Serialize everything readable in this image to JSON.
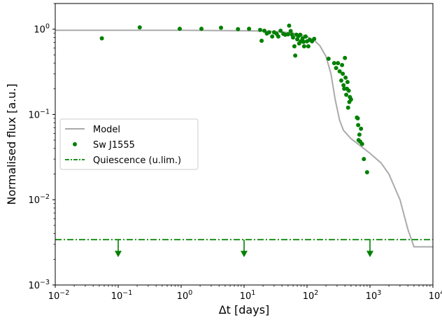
{
  "chart_data": {
    "type": "line",
    "xlabel": "Δt [days]",
    "ylabel": "Normalised flux [a.u.]",
    "x_scale": "log",
    "y_scale": "log",
    "xlim": [
      0.01,
      10000
    ],
    "ylim": [
      0.001,
      2
    ],
    "x_ticks": [
      {
        "value": 0.01,
        "base": "10",
        "exp": "−2"
      },
      {
        "value": 0.1,
        "base": "10",
        "exp": "−1"
      },
      {
        "value": 1,
        "base": "10",
        "exp": "0"
      },
      {
        "value": 10,
        "base": "10",
        "exp": "1"
      },
      {
        "value": 100,
        "base": "10",
        "exp": "2"
      },
      {
        "value": 1000,
        "base": "10",
        "exp": "3"
      },
      {
        "value": 10000,
        "base": "10",
        "exp": "4"
      }
    ],
    "y_ticks": [
      {
        "value": 1,
        "base": "10",
        "exp": "0"
      },
      {
        "value": 0.1,
        "base": "10",
        "exp": "−1"
      },
      {
        "value": 0.01,
        "base": "10",
        "exp": "−2"
      },
      {
        "value": 0.001,
        "base": "10",
        "exp": "−3"
      }
    ],
    "grid": false,
    "legend": {
      "placement": "center-left",
      "entries": [
        {
          "label": "Model",
          "marker": "line",
          "color": "#aaaaaa"
        },
        {
          "label": "Sw J1555",
          "marker": "dot",
          "color": "#008000"
        },
        {
          "label": "Quiescence (u.lim.)",
          "marker": "dashdot",
          "color": "#008000"
        }
      ]
    },
    "series": [
      {
        "name": "Model",
        "style": "line",
        "color": "#aaaaaa",
        "x": [
          0.01,
          1,
          10,
          20,
          40,
          60,
          80,
          100,
          130,
          160,
          200,
          240,
          280,
          330,
          380,
          500,
          700,
          1000,
          1500,
          2000,
          3000,
          4000,
          5000,
          10000
        ],
        "y": [
          0.97,
          0.97,
          0.96,
          0.95,
          0.93,
          0.9,
          0.86,
          0.82,
          0.74,
          0.64,
          0.48,
          0.3,
          0.15,
          0.085,
          0.065,
          0.052,
          0.043,
          0.035,
          0.027,
          0.02,
          0.01,
          0.0045,
          0.0028,
          0.0028
        ]
      },
      {
        "name": "Sw J1555",
        "style": "scatter",
        "color": "#008000",
        "x": [
          0.055,
          0.22,
          0.95,
          2.1,
          4.3,
          8,
          12,
          18,
          19,
          21,
          23,
          25,
          28,
          30,
          33,
          35,
          38,
          42,
          45,
          50,
          52,
          55,
          58,
          60,
          63,
          65,
          68,
          70,
          73,
          75,
          78,
          80,
          85,
          88,
          90,
          95,
          100,
          105,
          110,
          120,
          130,
          220,
          270,
          290,
          310,
          330,
          350,
          360,
          370,
          380,
          390,
          400,
          410,
          420,
          430,
          440,
          450,
          460,
          470,
          480,
          500,
          620,
          640,
          650,
          660,
          680,
          700,
          720,
          750,
          800,
          900
        ],
        "y": [
          0.78,
          1.05,
          1.01,
          1.01,
          1.04,
          1.0,
          1.01,
          0.98,
          0.73,
          0.96,
          0.89,
          0.92,
          0.82,
          0.92,
          0.88,
          0.82,
          0.96,
          0.88,
          0.86,
          0.87,
          1.1,
          0.95,
          0.86,
          0.8,
          0.63,
          0.49,
          0.86,
          0.76,
          0.83,
          0.68,
          0.86,
          0.72,
          0.78,
          0.71,
          0.63,
          0.82,
          0.72,
          0.63,
          0.75,
          0.72,
          0.77,
          0.45,
          0.4,
          0.35,
          0.4,
          0.32,
          0.25,
          0.38,
          0.3,
          0.22,
          0.2,
          0.46,
          0.27,
          0.17,
          0.2,
          0.24,
          0.12,
          0.19,
          0.14,
          0.16,
          0.15,
          0.092,
          0.09,
          0.075,
          0.05,
          0.058,
          0.048,
          0.068,
          0.045,
          0.03,
          0.021
        ]
      },
      {
        "name": "Quiescence (u.lim.)",
        "style": "dashdot",
        "color": "#008000",
        "y_level": 0.0034,
        "upper_limit_arrows_x": [
          0.1,
          10,
          1000
        ]
      }
    ]
  }
}
